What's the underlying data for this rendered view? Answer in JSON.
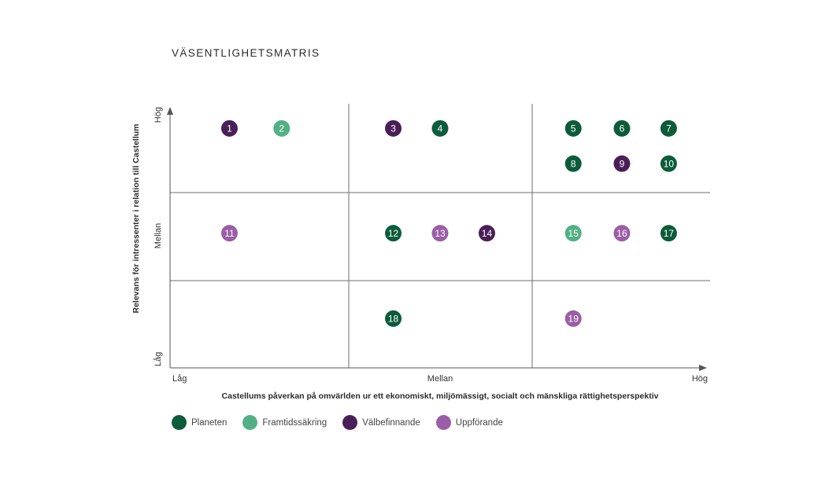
{
  "chart_data": {
    "type": "scatter",
    "title": "VÄSENTLIGHETSMATRIS",
    "xlabel": "Castellums påverkan på omvärlden ur ett ekonomiskt, miljömässigt, socialt och mänskliga rättighetsperspektiv",
    "ylabel": "Relevans för intressenter i relation till Castellum",
    "x_ticks": [
      "Låg",
      "Mellan",
      "Hög"
    ],
    "y_ticks": [
      "Låg",
      "Mellan",
      "Hög"
    ],
    "xlim": [
      0,
      3
    ],
    "ylim": [
      0,
      3
    ],
    "grid": "3x3",
    "legend": [
      {
        "name": "Planeten",
        "color": "#0c5c3b"
      },
      {
        "name": "Framtidssäkring",
        "color": "#52b085"
      },
      {
        "name": "Välbefinnande",
        "color": "#4a1f57"
      },
      {
        "name": "Uppförande",
        "color": "#9b5ea6"
      }
    ],
    "points": [
      {
        "label": "1",
        "x": 0.33,
        "y": 2.72,
        "category": "Välbefinnande"
      },
      {
        "label": "2",
        "x": 0.62,
        "y": 2.72,
        "category": "Framtidssäkring"
      },
      {
        "label": "3",
        "x": 1.24,
        "y": 2.72,
        "category": "Välbefinnande"
      },
      {
        "label": "4",
        "x": 1.5,
        "y": 2.72,
        "category": "Planeten"
      },
      {
        "label": "5",
        "x": 2.24,
        "y": 2.72,
        "category": "Planeten"
      },
      {
        "label": "6",
        "x": 2.51,
        "y": 2.72,
        "category": "Planeten"
      },
      {
        "label": "7",
        "x": 2.77,
        "y": 2.72,
        "category": "Planeten"
      },
      {
        "label": "8",
        "x": 2.24,
        "y": 2.32,
        "category": "Planeten"
      },
      {
        "label": "9",
        "x": 2.51,
        "y": 2.32,
        "category": "Välbefinnande"
      },
      {
        "label": "10",
        "x": 2.77,
        "y": 2.32,
        "category": "Planeten"
      },
      {
        "label": "11",
        "x": 0.33,
        "y": 1.53,
        "category": "Uppförande"
      },
      {
        "label": "12",
        "x": 1.24,
        "y": 1.53,
        "category": "Planeten"
      },
      {
        "label": "13",
        "x": 1.5,
        "y": 1.53,
        "category": "Uppförande"
      },
      {
        "label": "14",
        "x": 1.76,
        "y": 1.53,
        "category": "Välbefinnande"
      },
      {
        "label": "15",
        "x": 2.24,
        "y": 1.53,
        "category": "Framtidssäkring"
      },
      {
        "label": "16",
        "x": 2.51,
        "y": 1.53,
        "category": "Uppförande"
      },
      {
        "label": "17",
        "x": 2.77,
        "y": 1.53,
        "category": "Planeten"
      },
      {
        "label": "18",
        "x": 1.24,
        "y": 0.56,
        "category": "Planeten"
      },
      {
        "label": "19",
        "x": 2.24,
        "y": 0.56,
        "category": "Uppförande"
      }
    ]
  }
}
